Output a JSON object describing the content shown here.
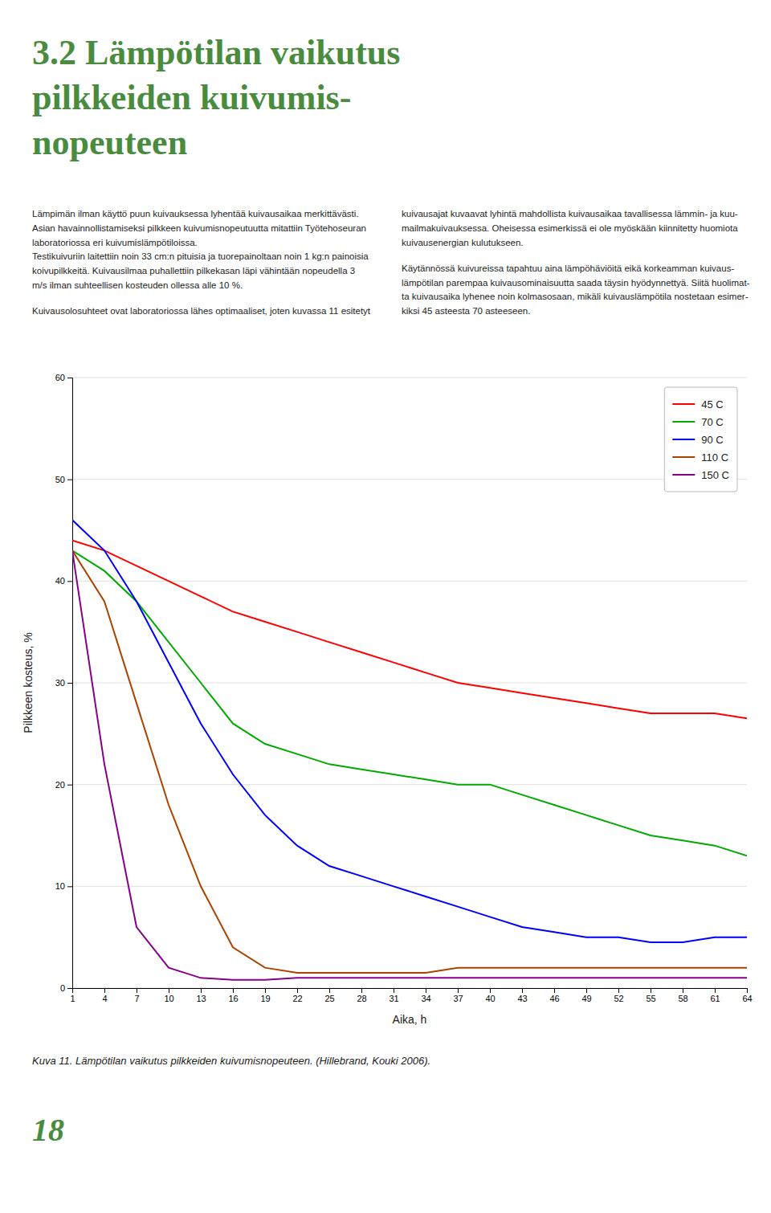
{
  "heading": {
    "lines": [
      "3.2 Lämpötilan vaikutus",
      "pilkkeiden kuivumis-",
      "nopeuteen"
    ],
    "color": "#4a8c3f"
  },
  "left_column": [
    [
      "Lämpimän ilman käyttö puun kuivauksessa lyhentää kuivausaikaa merkittävästi.",
      "Asian havainnollistamiseksi pilkkeen kuivumisnopeutuutta mitattiin Työtehoseuran",
      "laboratoriossa eri kuivumislämpötiloissa.",
      "Testikuivuriin laitettiin noin 33 cm:n pituisia ja tuorepainoltaan noin 1 kg:n painoisia",
      "koivupilkkeitä. Kuivausilmaa puhallettiin pilkekasan läpi vähintään nopeudella 3",
      "m/s ilman suhteellisen kosteuden ollessa alle 10 %."
    ],
    [
      "Kuivausolosuhteet ovat laboratoriossa lähes optimaaliset, joten kuvassa 11 esitetyt"
    ]
  ],
  "right_column": [
    [
      "kuivausajat kuvaavat lyhintä mahdollista kuivausaikaa tavallisessa lämmin- ja kuu-",
      "mailmakuivauksessa. Oheisessa esimerkissä ei ole myöskään kiinnitetty huomiota",
      "kuivausenergian kulutukseen."
    ],
    [
      "Käytännössä kuivureissa tapahtuu aina lämpöhäviöitä eikä korkeamman kuivaus-",
      "lämpötilan parempaa kuivausominaisuutta saada täysin hyödynnettyä. Siitä huolimat-",
      "ta kuivausaika lyhenee noin kolmasosaan, mikäli kuivauslämpötila nostetaan esimer-",
      "kiksi 45 asteesta 70 asteeseen."
    ]
  ],
  "caption": "Kuva 11. Lämpötilan vaikutus pilkkeiden kuivumisnopeuteen. (Hillebrand, Kouki 2006).",
  "page_number": "18",
  "chart_data": {
    "type": "line",
    "xlabel": "Aika, h",
    "ylabel": "Pilkkeen kosteus, %",
    "x": [
      1,
      4,
      7,
      10,
      13,
      16,
      19,
      22,
      25,
      28,
      31,
      34,
      37,
      40,
      43,
      46,
      49,
      52,
      55,
      58,
      61,
      64
    ],
    "series": [
      {
        "name": "45 C",
        "color": "#ff0000",
        "values": [
          44,
          43,
          41.5,
          40,
          38.5,
          37,
          36,
          35,
          34,
          33,
          32,
          31,
          30,
          29.5,
          29,
          28.5,
          28,
          27.5,
          27,
          27,
          27,
          26.5
        ]
      },
      {
        "name": "70 C",
        "color": "#00aa00",
        "values": [
          43,
          41,
          38,
          34,
          30,
          26,
          24,
          23,
          22,
          21.5,
          21,
          20.5,
          20,
          20,
          19,
          18,
          17,
          16,
          15,
          14.5,
          14,
          13
        ]
      },
      {
        "name": "90 C",
        "color": "#0000ff",
        "values": [
          46,
          43,
          38,
          32,
          26,
          21,
          17,
          14,
          12,
          11,
          10,
          9,
          8,
          7,
          6,
          5.5,
          5,
          5,
          4.5,
          4.5,
          5,
          5
        ]
      },
      {
        "name": "110 C",
        "color": "#aa4400",
        "values": [
          43,
          38,
          28,
          18,
          10,
          4,
          2,
          1.5,
          1.5,
          1.5,
          1.5,
          1.5,
          2,
          2,
          2,
          2,
          2,
          2,
          2,
          2,
          2,
          2
        ]
      },
      {
        "name": "150 C",
        "color": "#880088",
        "values": [
          43,
          22,
          6,
          2,
          1,
          0.8,
          0.8,
          1,
          1,
          1,
          1,
          1,
          1,
          1,
          1,
          1,
          1,
          1,
          1,
          1,
          1,
          1
        ]
      }
    ],
    "xlim": [
      1,
      64
    ],
    "xticks": [
      1,
      4,
      7,
      10,
      13,
      16,
      19,
      22,
      25,
      28,
      31,
      34,
      37,
      40,
      43,
      46,
      49,
      52,
      55,
      58,
      61,
      64
    ],
    "ylim": [
      0,
      60
    ],
    "yticks": [
      0,
      10,
      20,
      30,
      40,
      50,
      60
    ],
    "grid": "y",
    "legend": "upper right"
  }
}
